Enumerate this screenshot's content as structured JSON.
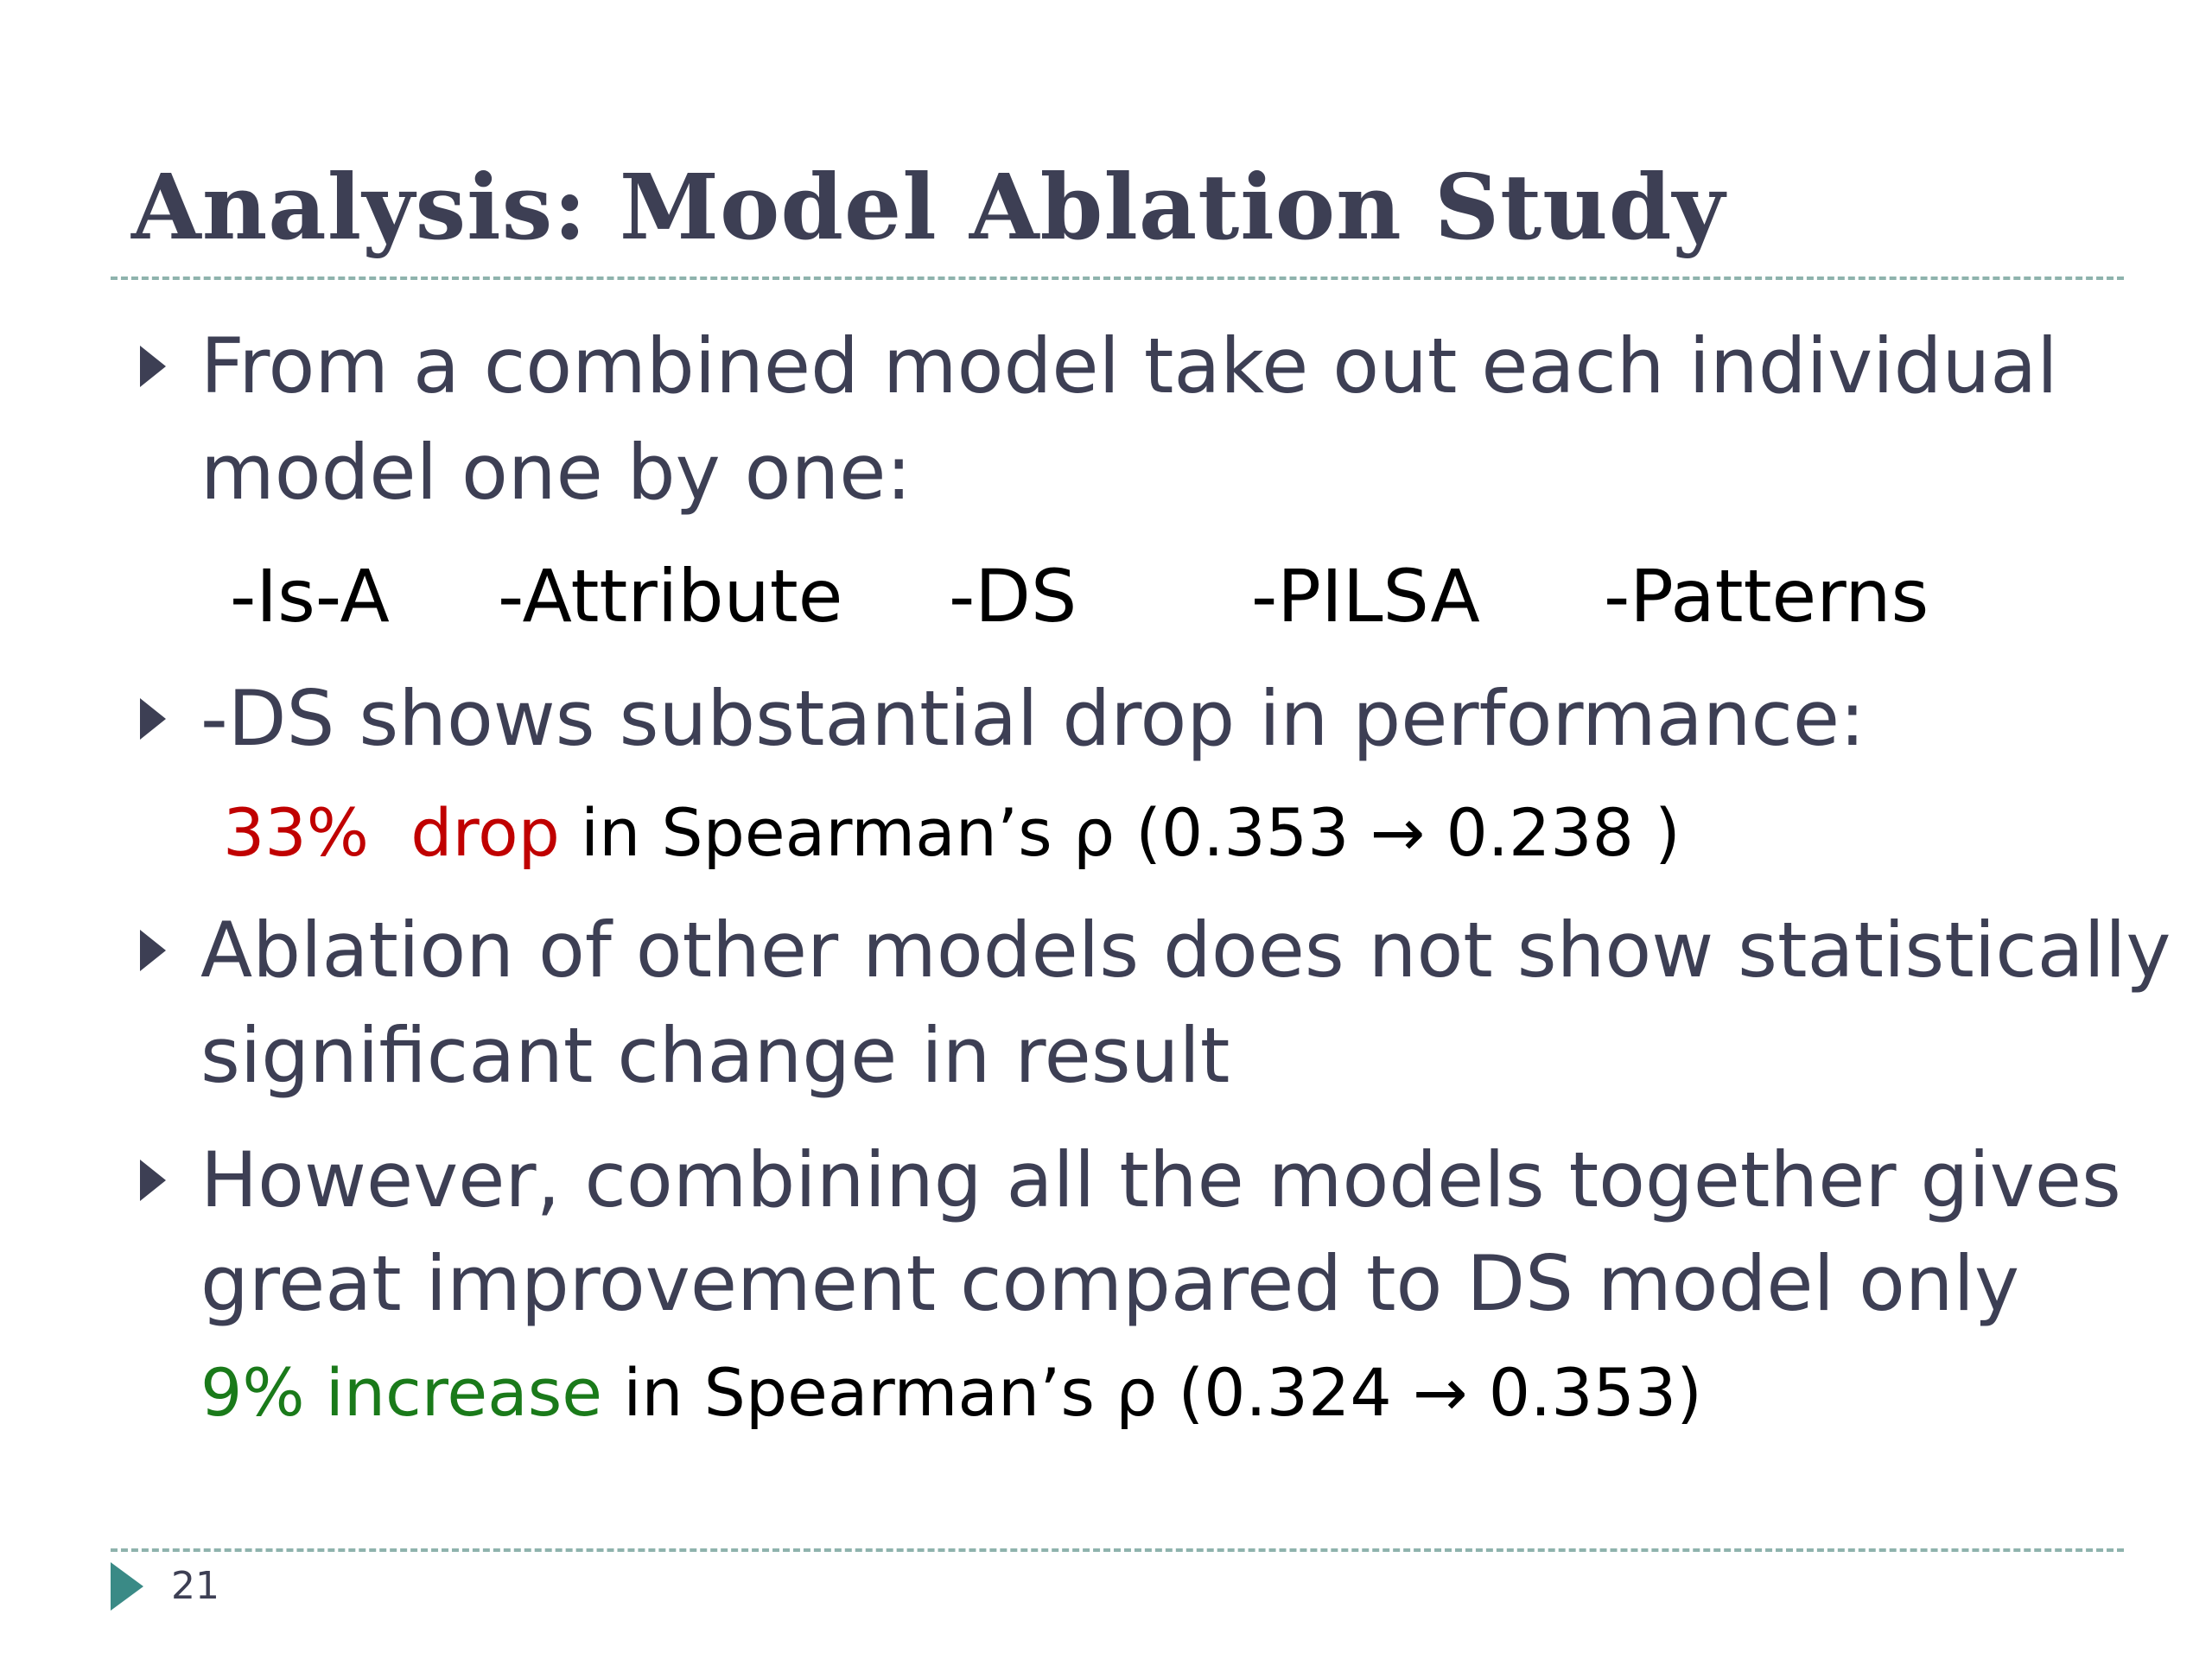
{
  "slide": {
    "title": "Analysis: Model Ablation Study",
    "page_number": "21",
    "bullets": [
      {
        "lines": [
          "From a combined model take out each individual",
          "model one by one:"
        ]
      },
      {
        "lines": [
          "-DS shows substantial drop in performance:"
        ]
      },
      {
        "lines": [
          "Ablation of other models does not show statistically",
          "significant change in result"
        ]
      },
      {
        "lines": [
          "However, combining all the models together gives",
          "great improvement compared to DS model only"
        ]
      }
    ],
    "models": [
      "-Is-A",
      "-Attribute",
      "-DS",
      "-PILSA",
      "-Patterns"
    ],
    "drop_note": {
      "highlight_pct": "33%",
      "highlight_word": "drop",
      "rest": " in Spearman’s ρ (0.353 → 0.238 )"
    },
    "increase_note": {
      "highlight": "9% increase",
      "rest": " in Spearman’s ρ (0.324 → 0.353)"
    },
    "colors": {
      "title": "#3d3f54",
      "body": "#3d3f54",
      "drop": "#c00000",
      "increase": "#1a7a1a",
      "rule": "#8fb3ad",
      "footer_marker": "#3a8a86"
    }
  }
}
